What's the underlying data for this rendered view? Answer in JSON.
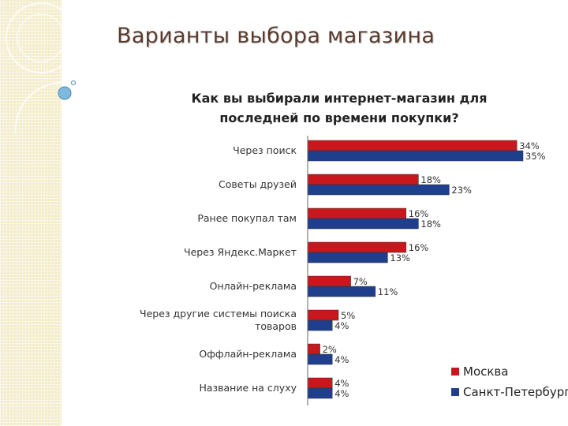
{
  "slide": {
    "title": "Варианты выбора магазина"
  },
  "chart_data": {
    "type": "bar",
    "orientation": "horizontal",
    "title": "Как вы выбирали интернет-магазин для последней по времени покупки?",
    "categories": [
      "Через поиск",
      "Советы друзей",
      "Ранее покупал там",
      "Через Яндекс.Маркет",
      "Онлайн-реклама",
      "Через другие системы поиска товаров",
      "Оффлайн-реклама",
      "Название на слуху"
    ],
    "series": [
      {
        "name": "Москва",
        "color": "#c8171d",
        "values": [
          34,
          18,
          16,
          16,
          7,
          5,
          2,
          4
        ]
      },
      {
        "name": "Санкт-Петербург",
        "color": "#1f3f8c",
        "values": [
          35,
          23,
          18,
          13,
          11,
          4,
          4,
          4
        ]
      }
    ],
    "value_suffix": "%",
    "xlim": [
      0,
      35
    ],
    "grid": false,
    "legend_position": "bottom-right"
  }
}
